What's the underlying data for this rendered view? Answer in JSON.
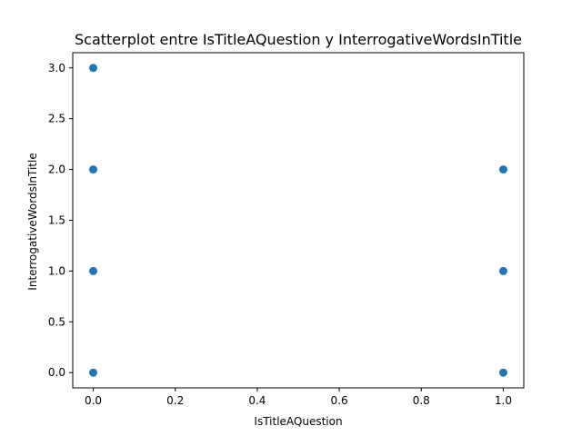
{
  "chart_data": {
    "type": "scatter",
    "title": "Scatterplot entre IsTitleAQuestion y InterrogativeWordsInTitle",
    "xlabel": "IsTitleAQuestion",
    "ylabel": "InterrogativeWordsInTitle",
    "xlim": [
      -0.05,
      1.05
    ],
    "ylim": [
      -0.15,
      3.15
    ],
    "xticks": [
      "0.0",
      "0.2",
      "0.4",
      "0.6",
      "0.8",
      "1.0"
    ],
    "yticks": [
      "0.0",
      "0.5",
      "1.0",
      "1.5",
      "2.0",
      "2.5",
      "3.0"
    ],
    "grid": false,
    "marker_color": "#1f77b4",
    "series": [
      {
        "points": [
          {
            "x": 0,
            "y": 3
          },
          {
            "x": 0,
            "y": 2
          },
          {
            "x": 0,
            "y": 1
          },
          {
            "x": 0,
            "y": 0
          },
          {
            "x": 1,
            "y": 2
          },
          {
            "x": 1,
            "y": 1
          },
          {
            "x": 1,
            "y": 0
          }
        ]
      }
    ]
  }
}
